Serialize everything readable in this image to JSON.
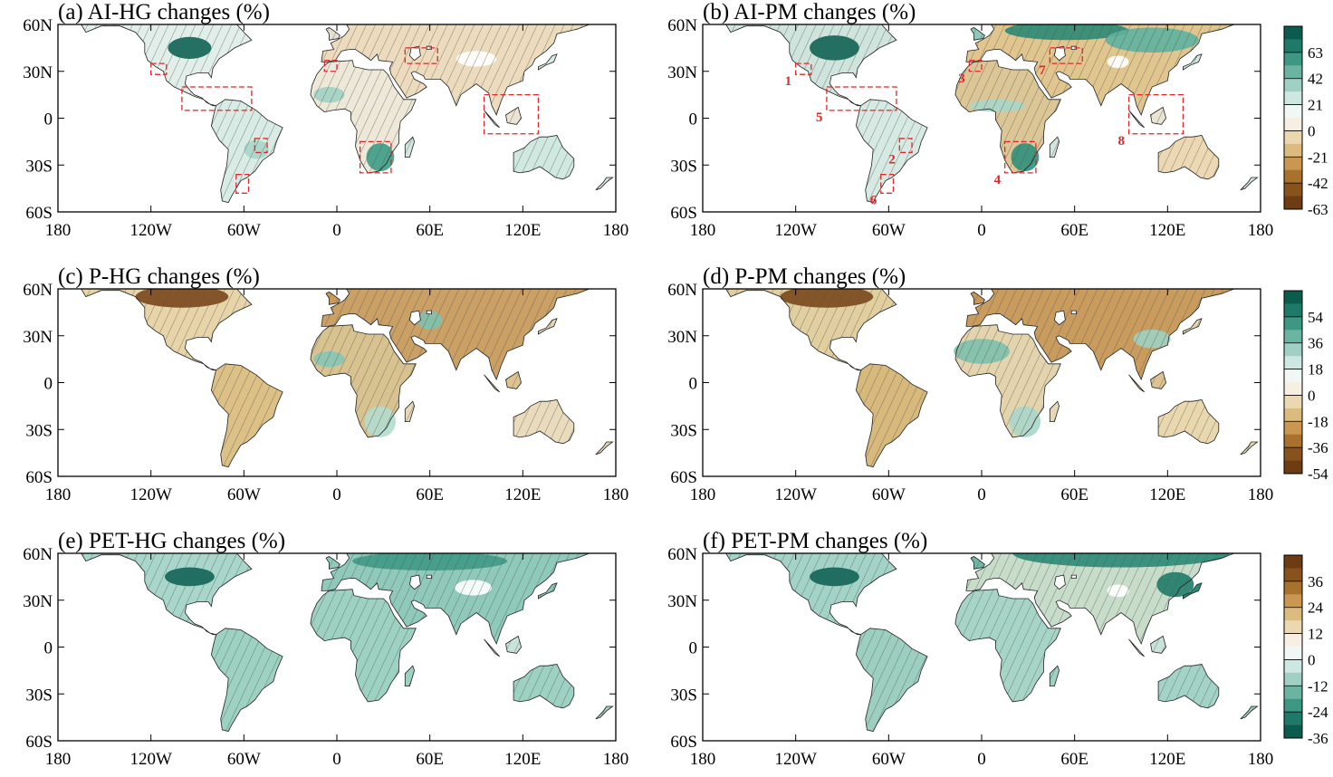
{
  "panels": [
    {
      "id": "a",
      "title": "(a) AI-HG changes (%)",
      "colorbar": "ai",
      "regions": true,
      "region_labels": false
    },
    {
      "id": "b",
      "title": "(b) AI-PM changes (%)",
      "colorbar": "ai",
      "regions": true,
      "region_labels": true
    },
    {
      "id": "c",
      "title": "(c) P-HG changes (%)",
      "colorbar": "p",
      "regions": false,
      "region_labels": false
    },
    {
      "id": "d",
      "title": "(d) P-PM changes (%)",
      "colorbar": "p",
      "regions": false,
      "region_labels": false
    },
    {
      "id": "e",
      "title": "(e) PET-HG changes (%)",
      "colorbar": "pet",
      "regions": false,
      "region_labels": false
    },
    {
      "id": "f",
      "title": "(f) PET-PM changes (%)",
      "colorbar": "pet",
      "regions": false,
      "region_labels": false
    }
  ],
  "axes": {
    "lat_ticks": [
      "60N",
      "30N",
      "0",
      "30S",
      "60S"
    ],
    "lat_values": [
      60,
      30,
      0,
      -30,
      -60
    ],
    "lon_ticks": [
      "180",
      "120W",
      "60W",
      "0",
      "60E",
      "120E",
      "180"
    ],
    "lon_values": [
      -180,
      -120,
      -60,
      0,
      60,
      120,
      180
    ]
  },
  "colorbars": {
    "ai": {
      "labels": [
        "63",
        "42",
        "21",
        "0",
        "-21",
        "-42",
        "-63"
      ],
      "top_color": "#0b5c4e",
      "bottom_color": "#6e3c12"
    },
    "p": {
      "labels": [
        "54",
        "36",
        "18",
        "0",
        "-18",
        "-36",
        "-54"
      ],
      "top_color": "#0b5c4e",
      "bottom_color": "#6e3c12"
    },
    "pet": {
      "labels": [
        "36",
        "24",
        "12",
        "0",
        "-12",
        "-24",
        "-36"
      ],
      "top_color": "#6e3c12",
      "bottom_color": "#0b5c4e"
    }
  },
  "colors": {
    "regions": "#e0262a",
    "coast": "#222222",
    "hatch": "#555555"
  },
  "regions": [
    {
      "label": "1",
      "lon": [
        -120,
        -110
      ],
      "lat": [
        28,
        35
      ]
    },
    {
      "label": "2",
      "lon": [
        -53,
        -45
      ],
      "lat": [
        -22,
        -13
      ]
    },
    {
      "label": "3",
      "lon": [
        -8,
        0
      ],
      "lat": [
        30,
        37
      ]
    },
    {
      "label": "4",
      "lon": [
        15,
        35
      ],
      "lat": [
        -35,
        -15
      ]
    },
    {
      "label": "5",
      "lon": [
        -100,
        -55
      ],
      "lat": [
        5,
        20
      ]
    },
    {
      "label": "6",
      "lon": [
        -65,
        -57
      ],
      "lat": [
        -48,
        -36
      ]
    },
    {
      "label": "7",
      "lon": [
        44,
        65
      ],
      "lat": [
        35,
        45
      ]
    },
    {
      "label": "8",
      "lon": [
        95,
        130
      ],
      "lat": [
        -10,
        15
      ]
    }
  ]
}
